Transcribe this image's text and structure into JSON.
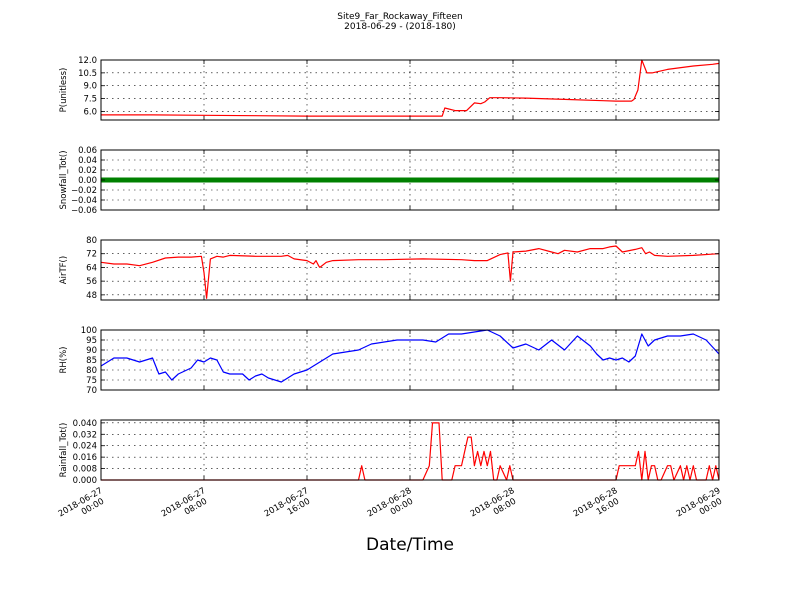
{
  "figure": {
    "title": "Site9_Far_Rockaway_Fifteen",
    "subtitle": "2018-06-29 - (2018-180)",
    "xlabel": "Date/Time"
  },
  "chart_data": [
    {
      "type": "line",
      "ylabel": "P(unitless)",
      "color": "#ff0000",
      "ylim": [
        5.0,
        12.0
      ],
      "yticks": [
        6.0,
        7.5,
        9.0,
        10.5,
        12.0
      ],
      "ytick_labels": [
        "6.0",
        "7.5",
        "9.0",
        "10.5",
        "12.0"
      ],
      "xlim": [
        0,
        48
      ],
      "x": [
        0,
        4,
        8,
        12,
        16,
        20,
        24,
        26.5,
        26.7,
        27.5,
        28.4,
        29,
        29.5,
        29.8,
        30.2,
        31,
        33,
        36,
        39,
        40,
        40.5,
        41.2,
        41.4,
        41.7,
        42.0,
        42.4,
        42.8,
        44,
        46,
        47.5,
        48
      ],
      "y": [
        5.6,
        5.6,
        5.55,
        5.5,
        5.45,
        5.45,
        5.45,
        5.45,
        6.4,
        6.1,
        6.1,
        7.0,
        6.9,
        7.1,
        7.6,
        7.6,
        7.55,
        7.4,
        7.25,
        7.2,
        7.2,
        7.2,
        7.4,
        8.5,
        12.0,
        10.5,
        10.5,
        10.9,
        11.3,
        11.5,
        11.6
      ]
    },
    {
      "type": "line",
      "ylabel": "Snowfall_Tot()",
      "color": "#008000",
      "ylim": [
        -0.06,
        0.06
      ],
      "yticks": [
        -0.06,
        -0.04,
        -0.02,
        0.0,
        0.02,
        0.04,
        0.06
      ],
      "ytick_labels": [
        "−0.06",
        "−0.04",
        "−0.02",
        "0.00",
        "0.02",
        "0.04",
        "0.06"
      ],
      "xlim": [
        0,
        48
      ],
      "x": [
        0,
        48
      ],
      "y": [
        0.0,
        0.0
      ]
    },
    {
      "type": "line",
      "ylabel": "AirTF()",
      "color": "#ff0000",
      "ylim": [
        45,
        80
      ],
      "yticks": [
        48,
        56,
        64,
        72,
        80
      ],
      "ytick_labels": [
        "48",
        "56",
        "64",
        "72",
        "80"
      ],
      "xlim": [
        0,
        48
      ],
      "x": [
        0,
        1,
        2,
        3,
        4,
        5,
        6,
        7,
        7.8,
        8.0,
        8.2,
        8.5,
        9,
        9.5,
        10,
        12,
        14,
        14.5,
        15,
        16,
        16.5,
        16.7,
        16.9,
        17,
        17.5,
        18,
        20,
        22,
        25,
        28,
        29,
        30,
        31,
        31.6,
        31.8,
        32.0,
        33,
        34,
        35,
        35.5,
        36,
        37,
        38,
        39,
        39.5,
        40,
        40.5,
        41.5,
        42.0,
        42.3,
        42.6,
        43,
        44,
        46,
        48
      ],
      "y": [
        67,
        66,
        66,
        65,
        67,
        69.5,
        70,
        70,
        70.5,
        61,
        46,
        69,
        70.5,
        70,
        71,
        70.5,
        70.5,
        71,
        69,
        68,
        66,
        68,
        65,
        64,
        67,
        68,
        68.5,
        68.5,
        69,
        68.5,
        68,
        68,
        71.5,
        72.5,
        56,
        73,
        73.5,
        75,
        73,
        72,
        74,
        73,
        75,
        75,
        76,
        76.5,
        73,
        74.5,
        75.5,
        72,
        73,
        71,
        70.5,
        71,
        72
      ]
    },
    {
      "type": "line",
      "ylabel": "RH(%)",
      "color": "#0000ff",
      "ylim": [
        70,
        100
      ],
      "yticks": [
        70,
        75,
        80,
        85,
        90,
        95,
        100
      ],
      "ytick_labels": [
        "70",
        "75",
        "80",
        "85",
        "90",
        "95",
        "100"
      ],
      "xlim": [
        0,
        48
      ],
      "x": [
        0,
        1,
        2,
        3,
        4,
        4.5,
        5,
        5.5,
        6,
        7,
        7.5,
        8,
        8.5,
        9,
        9.5,
        10,
        11,
        11.5,
        12,
        12.5,
        13,
        14,
        14.5,
        15,
        16,
        16.5,
        17,
        18,
        19,
        20,
        21,
        22,
        23,
        24,
        25,
        26,
        27,
        28,
        29,
        30,
        31,
        32,
        33,
        34,
        35,
        36,
        37,
        38,
        38.5,
        39,
        39.5,
        40,
        40.5,
        41,
        41.5,
        42,
        42.5,
        43,
        44,
        45,
        46,
        47,
        48
      ],
      "y": [
        82,
        86,
        86,
        84,
        86,
        78,
        79,
        75,
        78,
        81,
        85,
        84,
        86,
        85,
        79,
        78,
        78,
        75,
        77,
        78,
        76,
        74,
        76,
        78,
        80,
        82,
        84,
        88,
        89,
        90,
        93,
        94,
        95,
        95,
        95,
        94,
        98,
        98,
        99,
        100,
        97,
        91,
        93,
        90,
        95,
        90,
        97,
        92,
        88,
        85,
        86,
        85,
        86,
        84,
        87,
        98,
        92,
        95,
        97,
        97,
        98,
        95,
        88
      ]
    },
    {
      "type": "line",
      "ylabel": "Rainfall_Tot()",
      "color": "#ff0000",
      "ylim": [
        0.0,
        0.042
      ],
      "yticks": [
        0.0,
        0.008,
        0.016,
        0.024,
        0.032,
        0.04
      ],
      "ytick_labels": [
        "0.000",
        "0.008",
        "0.016",
        "0.024",
        "0.032",
        "0.040"
      ],
      "xlim": [
        0,
        48
      ],
      "xticks": [
        0,
        8,
        16,
        24,
        32,
        40,
        48
      ],
      "xtick_labels": [
        "2018-06-27\n00:00",
        "2018-06-27\n08:00",
        "2018-06-27\n16:00",
        "2018-06-28\n00:00",
        "2018-06-28\n08:00",
        "2018-06-28\n16:00",
        "2018-06-29\n00:00"
      ],
      "x": [
        0,
        20,
        20.25,
        20.5,
        25,
        25.5,
        25.75,
        26.0,
        26.25,
        26.5,
        27,
        27.25,
        27.5,
        28,
        28.25,
        28.5,
        28.75,
        29,
        29.25,
        29.5,
        29.75,
        30,
        30.25,
        30.5,
        30.75,
        31,
        31.5,
        31.75,
        32,
        32.25,
        32.5,
        33,
        40,
        40.25,
        41.5,
        41.75,
        42,
        42.25,
        42.5,
        42.75,
        43,
        43.25,
        43.5,
        44,
        44.25,
        44.5,
        45,
        45.25,
        45.5,
        45.75,
        46,
        46.25,
        47,
        47.25,
        47.5,
        47.75,
        48
      ],
      "y": [
        0,
        0,
        0.01,
        0,
        0,
        0.01,
        0.04,
        0.04,
        0.04,
        0,
        0,
        0,
        0.01,
        0.01,
        0.02,
        0.03,
        0.03,
        0.01,
        0.02,
        0.01,
        0.02,
        0.01,
        0.02,
        0,
        0,
        0.01,
        0,
        0.01,
        0,
        0,
        0,
        0,
        0,
        0.01,
        0.01,
        0.02,
        0,
        0.02,
        0,
        0.01,
        0.01,
        0,
        0,
        0.01,
        0.01,
        0,
        0.01,
        0,
        0.01,
        0,
        0.01,
        0,
        0,
        0.01,
        0,
        0.01,
        0
      ]
    }
  ]
}
